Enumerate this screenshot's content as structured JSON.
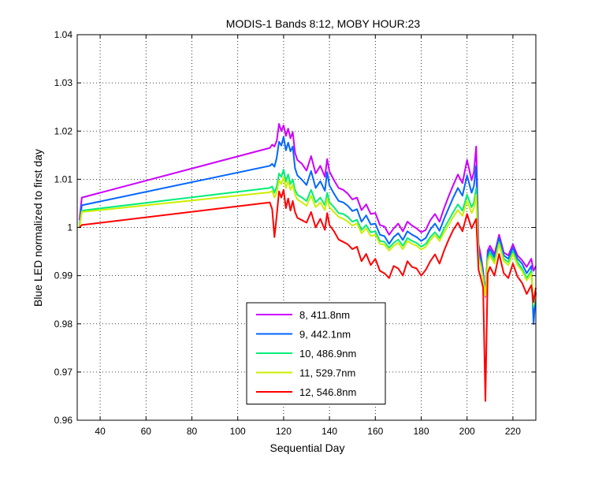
{
  "chart_data": {
    "type": "line",
    "title": "MODIS-1 Bands 8:12, MOBY HOUR:23",
    "xlabel": "Sequential Day",
    "ylabel": "Blue LED normalized to first day",
    "xlim": [
      30,
      230
    ],
    "ylim": [
      0.96,
      1.04
    ],
    "xticks": [
      40,
      60,
      80,
      100,
      120,
      140,
      160,
      180,
      200,
      220
    ],
    "yticks": [
      0.96,
      0.97,
      0.98,
      0.99,
      1,
      1.01,
      1.02,
      1.03,
      1.04
    ],
    "ytick_labels": [
      "0.96",
      "0.97",
      "0.98",
      "0.99",
      "1",
      "1.01",
      "1.02",
      "1.03",
      "1.04"
    ],
    "grid": true,
    "legend_position": "bottom-center",
    "x": [
      31,
      32,
      114,
      115,
      116,
      117,
      118,
      119,
      120,
      121,
      122,
      123,
      124,
      125,
      126,
      128,
      130,
      132,
      134,
      136,
      138,
      139,
      140,
      142,
      144,
      146,
      148,
      150,
      152,
      154,
      156,
      158,
      160,
      162,
      164,
      166,
      168,
      170,
      172,
      174,
      176,
      178,
      180,
      182,
      184,
      186,
      188,
      190,
      192,
      194,
      196,
      198,
      200,
      202,
      203,
      204,
      205,
      206,
      207,
      208,
      209,
      210,
      212,
      214,
      216,
      218,
      220,
      222,
      224,
      226,
      228,
      229,
      230
    ],
    "series": [
      {
        "name": "8, 411.8nm",
        "color": "#cc00ff",
        "values": [
          1.0015,
          1.0062,
          1.0165,
          1.0172,
          1.0168,
          1.018,
          1.0215,
          1.02,
          1.0212,
          1.019,
          1.0205,
          1.0185,
          1.0198,
          1.0155,
          1.014,
          1.0132,
          1.0118,
          1.0148,
          1.0112,
          1.0128,
          1.0105,
          1.0142,
          1.0116,
          1.0098,
          1.0082,
          1.0078,
          1.007,
          1.0058,
          1.0062,
          1.0036,
          1.0048,
          1.0028,
          1.003,
          1.0005,
          1.0002,
          0.9985,
          0.9998,
          1.0008,
          0.9992,
          1.0012,
          1.0004,
          0.9998,
          0.999,
          0.9995,
          1.0015,
          1.0028,
          1.0012,
          1.004,
          1.0065,
          1.0088,
          1.011,
          1.0092,
          1.014,
          1.0098,
          1.0115,
          1.0168,
          0.9965,
          0.9942,
          0.991,
          0.9856,
          0.9952,
          0.9962,
          0.9945,
          0.9985,
          0.9948,
          0.9942,
          0.9965,
          0.9942,
          0.9932,
          0.9918,
          0.9935,
          0.991,
          0.992
        ]
      },
      {
        "name": "9, 442.1nm",
        "color": "#0066ff",
        "values": [
          1.0003,
          1.0046,
          1.0128,
          1.0132,
          1.0126,
          1.0145,
          1.0178,
          1.017,
          1.0188,
          1.016,
          1.0176,
          1.0158,
          1.0168,
          1.0123,
          1.0108,
          1.0099,
          1.0088,
          1.0117,
          1.0082,
          1.0096,
          1.0076,
          1.0115,
          1.0087,
          1.007,
          1.0055,
          1.0052,
          1.0045,
          1.0034,
          1.0038,
          1.0012,
          1.0025,
          1.0006,
          1.0008,
          0.9985,
          0.9982,
          0.9966,
          0.998,
          0.9988,
          0.9974,
          0.9992,
          0.9985,
          0.998,
          0.9972,
          0.9978,
          0.9996,
          1.0008,
          0.9993,
          1.0018,
          1.004,
          1.0062,
          1.0082,
          1.0066,
          1.0108,
          1.0072,
          1.0086,
          1.0128,
          0.995,
          0.9935,
          0.9902,
          0.9865,
          0.9945,
          0.9955,
          0.9938,
          0.9978,
          0.9942,
          0.9935,
          0.9958,
          0.9935,
          0.9925,
          0.9905,
          0.992,
          0.98,
          0.9865
        ]
      },
      {
        "name": "10, 486.9nm",
        "color": "#00ee77",
        "values": [
          1.0,
          1.0035,
          1.0082,
          1.0085,
          1.0072,
          1.0085,
          1.0112,
          1.0105,
          1.012,
          1.0095,
          1.011,
          1.009,
          1.01,
          1.0078,
          1.0068,
          1.0062,
          1.0055,
          1.0078,
          1.0052,
          1.0062,
          1.0046,
          1.0072,
          1.0052,
          1.0042,
          1.003,
          1.0028,
          1.0022,
          1.0012,
          1.0016,
          0.9995,
          1.0005,
          0.999,
          0.9992,
          0.9972,
          0.997,
          0.9958,
          0.9968,
          0.9975,
          0.9962,
          0.9978,
          0.9972,
          0.9968,
          0.996,
          0.9966,
          0.998,
          0.999,
          0.9978,
          0.9998,
          1.0015,
          1.0032,
          1.0048,
          1.0035,
          1.0068,
          1.0042,
          1.0052,
          1.0082,
          0.994,
          0.9925,
          0.9895,
          0.986,
          0.9935,
          0.9948,
          0.993,
          0.997,
          0.9935,
          0.9928,
          0.995,
          0.9928,
          0.9915,
          0.9895,
          0.991,
          0.9835,
          0.9868
        ]
      },
      {
        "name": "11, 529.7nm",
        "color": "#ccee00",
        "values": [
          1.0,
          1.0032,
          1.0073,
          1.0076,
          1.0062,
          1.0072,
          1.0098,
          1.009,
          1.0105,
          1.0082,
          1.0096,
          1.0078,
          1.0088,
          1.0068,
          1.0058,
          1.0052,
          1.0045,
          1.0066,
          1.0042,
          1.0052,
          1.0036,
          1.006,
          1.0042,
          1.0032,
          1.0022,
          1.0018,
          1.0012,
          1.0004,
          1.0008,
          0.9988,
          0.9998,
          0.9982,
          0.9985,
          0.9966,
          0.9964,
          0.9952,
          0.9962,
          0.9968,
          0.9955,
          0.9972,
          0.9966,
          0.9962,
          0.9954,
          0.996,
          0.9974,
          0.9984,
          0.9972,
          0.999,
          1.0006,
          1.0022,
          1.0036,
          1.0024,
          1.0055,
          1.003,
          1.004,
          1.0068,
          0.9935,
          0.992,
          0.9892,
          0.9858,
          0.993,
          0.9942,
          0.9925,
          0.9965,
          0.993,
          0.9922,
          0.9945,
          0.9922,
          0.991,
          0.989,
          0.9905,
          0.984,
          0.987
        ]
      },
      {
        "name": "12, 546.8nm",
        "color": "#ff0000",
        "values": [
          1.0,
          1.0005,
          1.0052,
          1.0038,
          0.998,
          1.0025,
          1.0075,
          1.0062,
          1.0078,
          1.004,
          1.006,
          1.0035,
          1.0055,
          1.0032,
          1.002,
          1.0015,
          1.001,
          1.0032,
          1.0,
          1.0018,
          0.9995,
          1.003,
          1.0005,
          0.9992,
          0.9975,
          0.997,
          0.9965,
          0.9955,
          0.996,
          0.993,
          0.9945,
          0.9922,
          0.9935,
          0.991,
          0.9905,
          0.9895,
          0.992,
          0.9915,
          0.99,
          0.993,
          0.9918,
          0.9915,
          0.99,
          0.9912,
          0.993,
          0.9944,
          0.9925,
          0.9952,
          0.9975,
          0.9995,
          1.001,
          0.9992,
          1.0028,
          0.9998,
          1.0008,
          1.0018,
          0.9912,
          0.9895,
          0.9875,
          0.964,
          0.9905,
          0.9918,
          0.99,
          0.9945,
          0.9905,
          0.9895,
          0.9925,
          0.9898,
          0.9885,
          0.9862,
          0.988,
          0.9845,
          0.9875
        ]
      }
    ]
  }
}
